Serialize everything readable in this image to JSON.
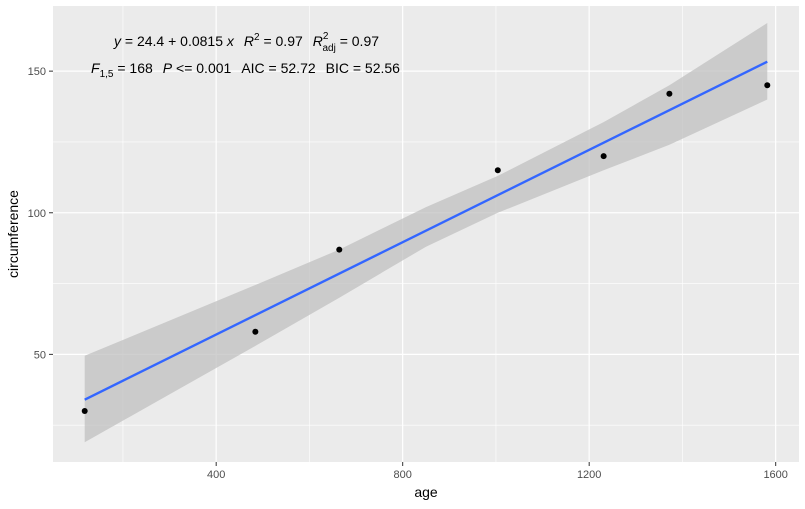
{
  "chart_data": {
    "type": "scatter",
    "title": "",
    "xlabel": "age",
    "ylabel": "circumference",
    "xlim": [
      50,
      1650
    ],
    "ylim": [
      12,
      173
    ],
    "x_ticks": [
      400,
      800,
      1200,
      1600
    ],
    "y_ticks": [
      50,
      100,
      150
    ],
    "grid": true,
    "legend": "none",
    "points": [
      {
        "x": 118,
        "y": 30
      },
      {
        "x": 484,
        "y": 58
      },
      {
        "x": 664,
        "y": 87
      },
      {
        "x": 1004,
        "y": 115
      },
      {
        "x": 1231,
        "y": 120
      },
      {
        "x": 1372,
        "y": 142
      },
      {
        "x": 1582,
        "y": 145
      }
    ],
    "fit": {
      "intercept": 24.4,
      "slope": 0.0815,
      "x_range": [
        118,
        1582
      ],
      "ci_band": [
        {
          "x": 118,
          "lower": 19,
          "upper": 49.5
        },
        {
          "x": 484,
          "lower": 53,
          "upper": 74.5
        },
        {
          "x": 664,
          "lower": 70,
          "upper": 87
        },
        {
          "x": 850,
          "lower": 88,
          "upper": 102
        },
        {
          "x": 1004,
          "lower": 100,
          "upper": 113
        },
        {
          "x": 1231,
          "lower": 115,
          "upper": 132
        },
        {
          "x": 1372,
          "lower": 124,
          "upper": 145
        },
        {
          "x": 1582,
          "lower": 140,
          "upper": 167
        }
      ]
    },
    "annotation": {
      "line1": {
        "y_sym": "y",
        "eq_text": " = 24.4 + 0.0815 ",
        "x_sym": "x",
        "r2_sym": "R",
        "r2_sup": "2",
        "r2_val": " = 0.97",
        "radj_sym": "R",
        "radj_sup": "2",
        "radj_sub": "adj",
        "radj_val": " = 0.97"
      },
      "line2": {
        "f_sym": "F",
        "f_sub": "1,5",
        "f_val": " = 168",
        "p_sym": "P",
        "p_val": " <= 0.001",
        "aic": "AIC = 52.72",
        "bic": "BIC = 52.56"
      }
    },
    "colors": {
      "panel": "#ebebeb",
      "grid": "#ffffff",
      "fit_line": "#3366ff",
      "band": "#bebebe",
      "point": "#000000"
    }
  }
}
